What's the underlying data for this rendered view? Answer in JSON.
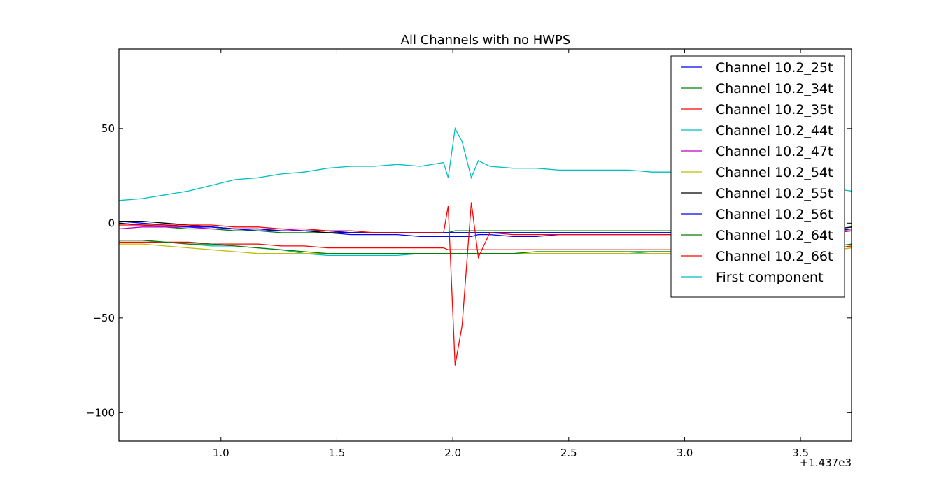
{
  "chart_data": {
    "type": "line",
    "title": "All Channels with no HWPS",
    "xlabel": "",
    "ylabel": "",
    "x_offset_label": "+1.437e3",
    "xlim": [
      0.56,
      3.72
    ],
    "ylim": [
      -115,
      92
    ],
    "x_ticks": [
      1.0,
      1.5,
      2.0,
      2.5,
      3.0,
      3.5
    ],
    "x_tick_labels": [
      "1.0",
      "1.5",
      "2.0",
      "2.5",
      "3.0",
      "3.5"
    ],
    "y_ticks": [
      50,
      0,
      -50,
      -100
    ],
    "y_tick_labels": [
      "50",
      "0",
      "−50",
      "−100"
    ],
    "grid": false,
    "legend_position": "top-right",
    "x": [
      0.56,
      0.66,
      0.76,
      0.86,
      0.96,
      1.06,
      1.16,
      1.26,
      1.36,
      1.46,
      1.56,
      1.66,
      1.76,
      1.86,
      1.96,
      1.98,
      2.01,
      2.04,
      2.08,
      2.11,
      2.16,
      2.26,
      2.36,
      2.46,
      2.56,
      2.66,
      2.76,
      2.86,
      2.96,
      3.06,
      3.16,
      3.26,
      3.36,
      3.46,
      3.56,
      3.66,
      3.72
    ],
    "series": [
      {
        "name": "Channel 10.2_25t",
        "color": "#0000ff",
        "values": [
          1,
          0,
          -1,
          -2,
          -2,
          -3,
          -4,
          -4,
          -4,
          -5,
          -6,
          -6,
          -6,
          -7,
          -7,
          -7,
          -7,
          -7,
          -7,
          -6,
          -6,
          -7,
          -7,
          -6,
          -6,
          -6,
          -6,
          -6,
          -6,
          -6,
          -6,
          -6,
          -6,
          -6,
          -6,
          -5,
          -4
        ]
      },
      {
        "name": "Channel 10.2_34t",
        "color": "#008000",
        "values": [
          0,
          -1,
          -2,
          -3,
          -3,
          -4,
          -4,
          -5,
          -5,
          -5,
          -5,
          -5,
          -5,
          -5,
          -5,
          -5,
          -4,
          -4,
          -4,
          -4,
          -4,
          -4,
          -4,
          -4,
          -4,
          -4,
          -4,
          -4,
          -4,
          -4,
          -4,
          -4,
          -4,
          -4,
          -3,
          -3,
          -2
        ]
      },
      {
        "name": "Channel 10.2_35t",
        "color": "#ff0000",
        "values": [
          -10,
          -10,
          -10,
          -10,
          -11,
          -11,
          -11,
          -12,
          -12,
          -13,
          -13,
          -13,
          -13,
          -13,
          -13,
          -14,
          -14,
          -14,
          -14,
          -14,
          -14,
          -14,
          -14,
          -14,
          -14,
          -14,
          -14,
          -14,
          -14,
          -14,
          -14,
          -14,
          -14,
          -14,
          -13,
          -13,
          -12
        ]
      },
      {
        "name": "Channel 10.2_44t",
        "color": "#00bfbf",
        "values": [
          -9,
          -9,
          -10,
          -11,
          -12,
          -12,
          -13,
          -14,
          -16,
          -17,
          -17,
          -17,
          -17,
          -16,
          -16,
          -16,
          -16,
          -16,
          -16,
          -16,
          -16,
          -16,
          -16,
          -16,
          -16,
          -16,
          -16,
          -15,
          -15,
          -15,
          -15,
          -15,
          -15,
          -15,
          -14,
          -14,
          -13
        ]
      },
      {
        "name": "Channel 10.2_47t",
        "color": "#bf00bf",
        "values": [
          -3,
          -2,
          -2,
          -2,
          -3,
          -3,
          -3,
          -3,
          -4,
          -4,
          -5,
          -5,
          -5,
          -5,
          -5,
          -5,
          -5,
          -5,
          -5,
          -5,
          -5,
          -5,
          -5,
          -5,
          -5,
          -5,
          -5,
          -5,
          -5,
          -5,
          -5,
          -5,
          -5,
          -5,
          -5,
          -4,
          -4
        ]
      },
      {
        "name": "Channel 10.2_54t",
        "color": "#bfbf00",
        "values": [
          -11,
          -11,
          -12,
          -13,
          -14,
          -15,
          -16,
          -16,
          -16,
          -16,
          -16,
          -16,
          -16,
          -16,
          -16,
          -16,
          -16,
          -16,
          -16,
          -16,
          -16,
          -16,
          -16,
          -16,
          -16,
          -16,
          -16,
          -16,
          -16,
          -15,
          -15,
          -15,
          -15,
          -15,
          -15,
          -14,
          -13
        ]
      },
      {
        "name": "Channel 10.2_55t",
        "color": "#000000",
        "values": [
          1,
          1,
          0,
          -1,
          -2,
          -3,
          -3,
          -4,
          -4,
          -5,
          -5,
          -5,
          -5,
          -5,
          -5,
          -5,
          -5,
          -5,
          -5,
          -5,
          -5,
          -5,
          -5,
          -5,
          -5,
          -5,
          -5,
          -5,
          -5,
          -5,
          -5,
          -5,
          -5,
          -5,
          -4,
          -3,
          -2
        ]
      },
      {
        "name": "Channel 10.2_56t",
        "color": "#0000ff",
        "values": [
          0,
          -1,
          -1,
          -2,
          -2,
          -3,
          -3,
          -4,
          -4,
          -4,
          -5,
          -5,
          -5,
          -5,
          -5,
          -5,
          -5,
          -5,
          -5,
          -5,
          -5,
          -5,
          -5,
          -5,
          -5,
          -5,
          -5,
          -5,
          -5,
          -5,
          -5,
          -5,
          -5,
          -5,
          -4,
          -4,
          -3
        ]
      },
      {
        "name": "Channel 10.2_64t",
        "color": "#008000",
        "values": [
          -9,
          -9,
          -10,
          -11,
          -11,
          -12,
          -13,
          -14,
          -15,
          -16,
          -16,
          -16,
          -16,
          -16,
          -16,
          -16,
          -16,
          -16,
          -16,
          -16,
          -16,
          -16,
          -15,
          -15,
          -15,
          -15,
          -15,
          -15,
          -15,
          -15,
          -15,
          -14,
          -14,
          -14,
          -13,
          -12,
          -11
        ]
      },
      {
        "name": "Channel 10.2_66t",
        "color": "#ff0000",
        "values": [
          -1,
          -1,
          -1,
          -1,
          -1,
          -2,
          -2,
          -3,
          -3,
          -4,
          -4,
          -5,
          -5,
          -5,
          -5,
          9,
          -75,
          -54,
          11,
          -18,
          -5,
          -6,
          -6,
          -6,
          -6,
          -6,
          -6,
          -6,
          -6,
          -6,
          -6,
          -6,
          -6,
          -6,
          -5,
          -5,
          -4
        ]
      },
      {
        "name": "First component",
        "color": "#00bfbf",
        "values": [
          12,
          13,
          15,
          17,
          20,
          23,
          24,
          26,
          27,
          29,
          30,
          30,
          31,
          30,
          32,
          24,
          50,
          43,
          24,
          33,
          30,
          29,
          29,
          28,
          28,
          28,
          28,
          27,
          27,
          26,
          25,
          24,
          22,
          20,
          19,
          18,
          17
        ]
      }
    ]
  }
}
